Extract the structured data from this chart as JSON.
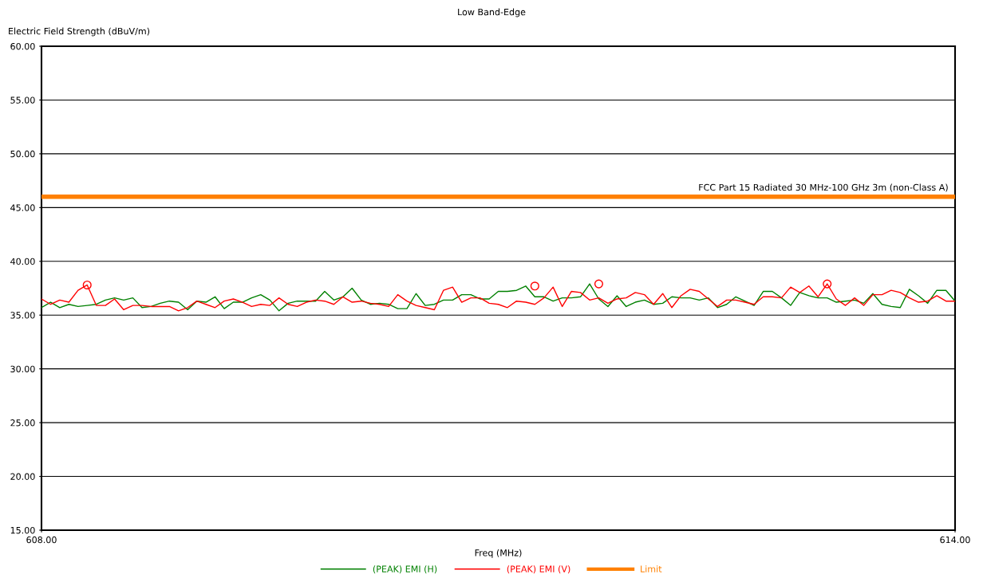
{
  "chart_data": {
    "type": "line",
    "title": "Low Band-Edge",
    "xlabel": "Freq (MHz)",
    "ylabel": "Electric Field Strength (dBuV/m)",
    "xlim": [
      608,
      614
    ],
    "xticks": [
      {
        "value": 608,
        "label": "608.00"
      },
      {
        "value": 614,
        "label": "614.00"
      }
    ],
    "ylim": [
      15,
      60
    ],
    "yticks": [
      {
        "value": 15,
        "label": "15.00"
      },
      {
        "value": 20,
        "label": "20.00"
      },
      {
        "value": 25,
        "label": "25.00"
      },
      {
        "value": 30,
        "label": "30.00"
      },
      {
        "value": 35,
        "label": "35.00"
      },
      {
        "value": 40,
        "label": "40.00"
      },
      {
        "value": 45,
        "label": "45.00"
      },
      {
        "value": 50,
        "label": "50.00"
      },
      {
        "value": 55,
        "label": "55.00"
      },
      {
        "value": 60,
        "label": "60.00"
      }
    ],
    "grid": "y",
    "legend": "bottom",
    "marker": "none",
    "line_style": "solid",
    "x": [
      608,
      608.06,
      608.12,
      608.18,
      608.24,
      608.3,
      608.36,
      608.42,
      608.48,
      608.54,
      608.6,
      608.66,
      608.72,
      608.78,
      608.84,
      608.9,
      608.96,
      609.02,
      609.08,
      609.14,
      609.2,
      609.26,
      609.32,
      609.38,
      609.44,
      609.5,
      609.56,
      609.62,
      609.68,
      609.74,
      609.8,
      609.86,
      609.92,
      609.98,
      610.04,
      610.1,
      610.16,
      610.22,
      610.28,
      610.34,
      610.4,
      610.46,
      610.52,
      610.58,
      610.64,
      610.7,
      610.76,
      610.82,
      610.88,
      610.94,
      611,
      611.06,
      611.12,
      611.18,
      611.24,
      611.3,
      611.36,
      611.42,
      611.48,
      611.54,
      611.6,
      611.66,
      611.72,
      611.78,
      611.84,
      611.9,
      611.96,
      612.02,
      612.08,
      612.14,
      612.2,
      612.26,
      612.32,
      612.38,
      612.44,
      612.5,
      612.56,
      612.62,
      612.68,
      612.74,
      612.8,
      612.86,
      612.92,
      612.98,
      613.04,
      613.1,
      613.16,
      613.22,
      613.28,
      613.34,
      613.4,
      613.46,
      613.52,
      613.58,
      613.64,
      613.7,
      613.76,
      613.82,
      613.88,
      613.94,
      614
    ],
    "series": [
      {
        "name": "(PEAK) EMI (H)",
        "color": "#008000",
        "values": [
          35.7,
          36.2,
          35.7,
          36.0,
          35.8,
          35.9,
          36.0,
          36.4,
          36.6,
          36.4,
          36.6,
          35.7,
          35.8,
          36.1,
          36.3,
          36.2,
          35.5,
          36.3,
          36.2,
          36.7,
          35.6,
          36.2,
          36.2,
          36.6,
          36.9,
          36.4,
          35.4,
          36.1,
          36.3,
          36.3,
          36.3,
          37.2,
          36.4,
          36.7,
          37.5,
          36.4,
          36.0,
          36.1,
          36.0,
          35.6,
          35.6,
          37.0,
          35.9,
          36.0,
          36.4,
          36.4,
          36.9,
          36.9,
          36.5,
          36.5,
          37.2,
          37.2,
          37.3,
          37.7,
          36.7,
          36.7,
          36.3,
          36.6,
          36.6,
          36.7,
          37.9,
          36.5,
          35.8,
          36.8,
          35.8,
          36.2,
          36.4,
          36.0,
          36.1,
          36.7,
          36.6,
          36.6,
          36.4,
          36.6,
          35.7,
          36.0,
          36.7,
          36.3,
          35.9,
          37.2,
          37.2,
          36.6,
          35.9,
          37.1,
          36.8,
          36.6,
          36.6,
          36.2,
          36.3,
          36.4,
          36.1,
          37.0,
          36.0,
          35.8,
          35.7,
          37.4,
          36.8,
          36.1,
          37.3,
          37.3,
          36.3
        ]
      },
      {
        "name": "(PEAK) EMI (V)",
        "color": "#ff0000",
        "values": [
          36.5,
          36.0,
          36.4,
          36.2,
          37.3,
          37.8,
          35.9,
          35.9,
          36.5,
          35.5,
          35.9,
          35.9,
          35.8,
          35.8,
          35.8,
          35.4,
          35.7,
          36.3,
          36.0,
          35.7,
          36.3,
          36.5,
          36.2,
          35.8,
          36.0,
          35.9,
          36.6,
          36.0,
          35.8,
          36.2,
          36.4,
          36.3,
          36.0,
          36.7,
          36.2,
          36.3,
          36.1,
          36.0,
          35.8,
          36.9,
          36.3,
          35.9,
          35.7,
          35.5,
          37.3,
          37.6,
          36.2,
          36.6,
          36.6,
          36.1,
          36.0,
          35.7,
          36.3,
          36.2,
          36.0,
          36.6,
          37.6,
          35.8,
          37.2,
          37.1,
          36.4,
          36.6,
          36.1,
          36.5,
          36.6,
          37.1,
          36.9,
          36.0,
          37.0,
          35.7,
          36.8,
          37.4,
          37.2,
          36.5,
          35.8,
          36.4,
          36.4,
          36.2,
          36.0,
          36.7,
          36.7,
          36.6,
          37.6,
          37.1,
          37.7,
          36.7,
          37.9,
          36.5,
          35.9,
          36.6,
          35.9,
          36.9,
          36.9,
          37.3,
          37.1,
          36.6,
          36.2,
          36.3,
          36.8,
          36.3,
          36.3
        ]
      },
      {
        "type": "scatter",
        "color": "#ff0000",
        "marker": "circle",
        "x": [
          608.3,
          611.24,
          611.66,
          613.16
        ],
        "values": [
          37.8,
          37.7,
          37.9,
          37.9
        ]
      },
      {
        "name": "Limit",
        "color": "#ff8000",
        "x": [
          608,
          614
        ],
        "values": [
          46.0,
          46.0
        ]
      }
    ],
    "annotations": [
      {
        "text": "FCC Part 15 Radiated 30 MHz-100 GHz 3m (non-Class A)",
        "x": 614,
        "y": 46.0
      }
    ]
  }
}
